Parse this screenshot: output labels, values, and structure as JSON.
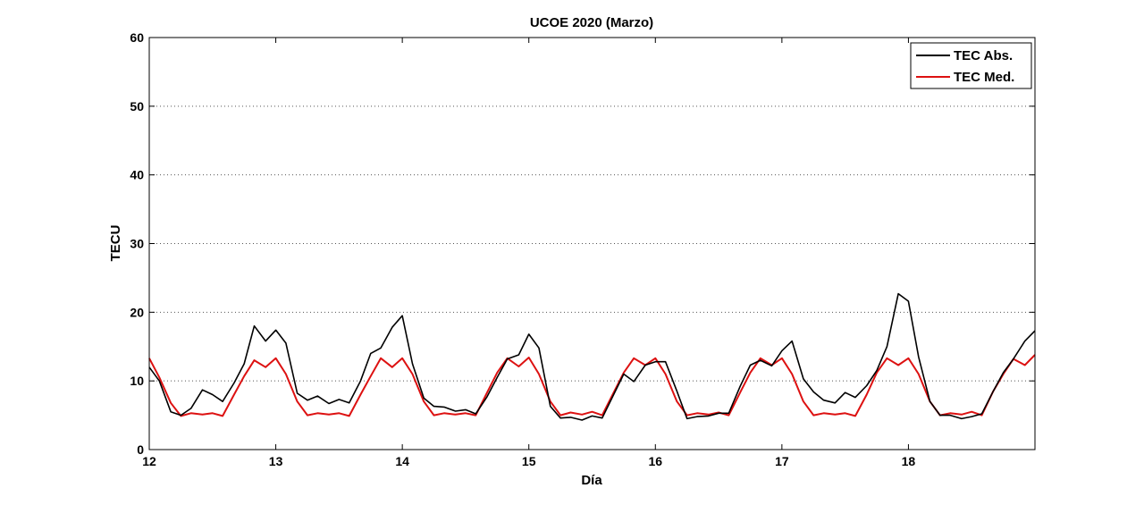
{
  "chart_data": {
    "type": "line",
    "title": "UCOE 2020 (Marzo)",
    "xlabel": "Día",
    "ylabel": "TECU",
    "xlim": [
      12,
      19
    ],
    "ylim": [
      0,
      60
    ],
    "xticks": [
      12,
      13,
      14,
      15,
      16,
      17,
      18
    ],
    "yticks": [
      0,
      10,
      20,
      30,
      40,
      50,
      60
    ],
    "grid": "horizontal dotted",
    "legend_position": "top-right",
    "colors": {
      "TEC Abs.": "#000000",
      "TEC Med.": "#dd1111"
    },
    "series": [
      {
        "name": "TEC Abs.",
        "x": [
          12.0,
          12.08,
          12.17,
          12.25,
          12.33,
          12.42,
          12.5,
          12.58,
          12.67,
          12.75,
          12.83,
          12.92,
          13.0,
          13.08,
          13.17,
          13.25,
          13.33,
          13.42,
          13.5,
          13.58,
          13.67,
          13.75,
          13.83,
          13.92,
          14.0,
          14.08,
          14.17,
          14.25,
          14.33,
          14.42,
          14.5,
          14.58,
          14.67,
          14.75,
          14.83,
          14.92,
          15.0,
          15.08,
          15.17,
          15.25,
          15.33,
          15.42,
          15.5,
          15.58,
          15.67,
          15.75,
          15.83,
          15.92,
          16.0,
          16.08,
          16.17,
          16.25,
          16.33,
          16.42,
          16.5,
          16.58,
          16.67,
          16.75,
          16.83,
          16.92,
          17.0,
          17.08,
          17.17,
          17.25,
          17.33,
          17.42,
          17.5,
          17.58,
          17.67,
          17.75,
          17.83,
          17.92,
          18.0,
          18.08,
          18.17,
          18.25,
          18.33,
          18.42,
          18.5,
          18.58,
          18.67,
          18.75,
          18.83,
          18.92,
          19.0
        ],
        "values": [
          12.0,
          10.0,
          5.5,
          5.0,
          6.0,
          8.7,
          8.0,
          7.0,
          9.7,
          12.5,
          18.0,
          15.8,
          17.4,
          15.5,
          8.2,
          7.2,
          7.8,
          6.7,
          7.3,
          6.8,
          10.0,
          14.0,
          14.8,
          17.8,
          19.5,
          12.5,
          7.5,
          6.3,
          6.2,
          5.6,
          5.8,
          5.2,
          7.7,
          10.5,
          13.2,
          13.8,
          16.8,
          14.8,
          6.3,
          4.6,
          4.7,
          4.3,
          4.9,
          4.6,
          8.0,
          11.0,
          9.9,
          12.3,
          12.8,
          12.8,
          8.5,
          4.5,
          4.8,
          4.9,
          5.3,
          5.3,
          9.2,
          12.3,
          13.0,
          12.2,
          14.4,
          15.8,
          10.3,
          8.4,
          7.2,
          6.8,
          8.3,
          7.6,
          9.3,
          11.5,
          15.0,
          22.7,
          21.6,
          13.5,
          7.0,
          5.0,
          5.0,
          4.5,
          4.8,
          5.2,
          8.5,
          11.2,
          13.2,
          15.8,
          17.3
        ]
      },
      {
        "name": "TEC Med.",
        "x": [
          12.0,
          12.08,
          12.17,
          12.25,
          12.33,
          12.42,
          12.5,
          12.58,
          12.67,
          12.75,
          12.83,
          12.92,
          13.0,
          13.08,
          13.17,
          13.25,
          13.33,
          13.42,
          13.5,
          13.58,
          13.67,
          13.75,
          13.83,
          13.92,
          14.0,
          14.08,
          14.17,
          14.25,
          14.33,
          14.42,
          14.5,
          14.58,
          14.67,
          14.75,
          14.83,
          14.92,
          15.0,
          15.08,
          15.17,
          15.25,
          15.33,
          15.42,
          15.5,
          15.58,
          15.67,
          15.75,
          15.83,
          15.92,
          16.0,
          16.08,
          16.17,
          16.25,
          16.33,
          16.42,
          16.5,
          16.58,
          16.67,
          16.75,
          16.83,
          16.92,
          17.0,
          17.08,
          17.17,
          17.25,
          17.33,
          17.42,
          17.5,
          17.58,
          17.67,
          17.75,
          17.83,
          17.92,
          18.0,
          18.08,
          18.17,
          18.25,
          18.33,
          18.42,
          18.5,
          18.58,
          18.67,
          18.75,
          18.83,
          18.92,
          19.0
        ],
        "values": [
          13.3,
          10.5,
          6.8,
          4.9,
          5.3,
          5.1,
          5.3,
          4.9,
          8.0,
          10.7,
          13.0,
          12.0,
          13.3,
          11.0,
          7.0,
          5.0,
          5.3,
          5.1,
          5.3,
          4.9,
          8.0,
          10.7,
          13.3,
          12.0,
          13.3,
          11.0,
          7.0,
          5.0,
          5.3,
          5.1,
          5.3,
          5.0,
          8.3,
          11.2,
          13.3,
          12.1,
          13.4,
          11.0,
          7.0,
          5.0,
          5.4,
          5.1,
          5.5,
          5.0,
          8.3,
          11.2,
          13.3,
          12.3,
          13.3,
          11.0,
          7.0,
          5.0,
          5.3,
          5.1,
          5.4,
          5.0,
          8.3,
          11.2,
          13.3,
          12.3,
          13.3,
          11.0,
          7.0,
          5.0,
          5.3,
          5.1,
          5.3,
          4.9,
          8.0,
          11.2,
          13.3,
          12.3,
          13.3,
          11.0,
          7.0,
          5.0,
          5.3,
          5.1,
          5.5,
          5.0,
          8.5,
          11.0,
          13.2,
          12.3,
          13.8
        ]
      }
    ]
  }
}
